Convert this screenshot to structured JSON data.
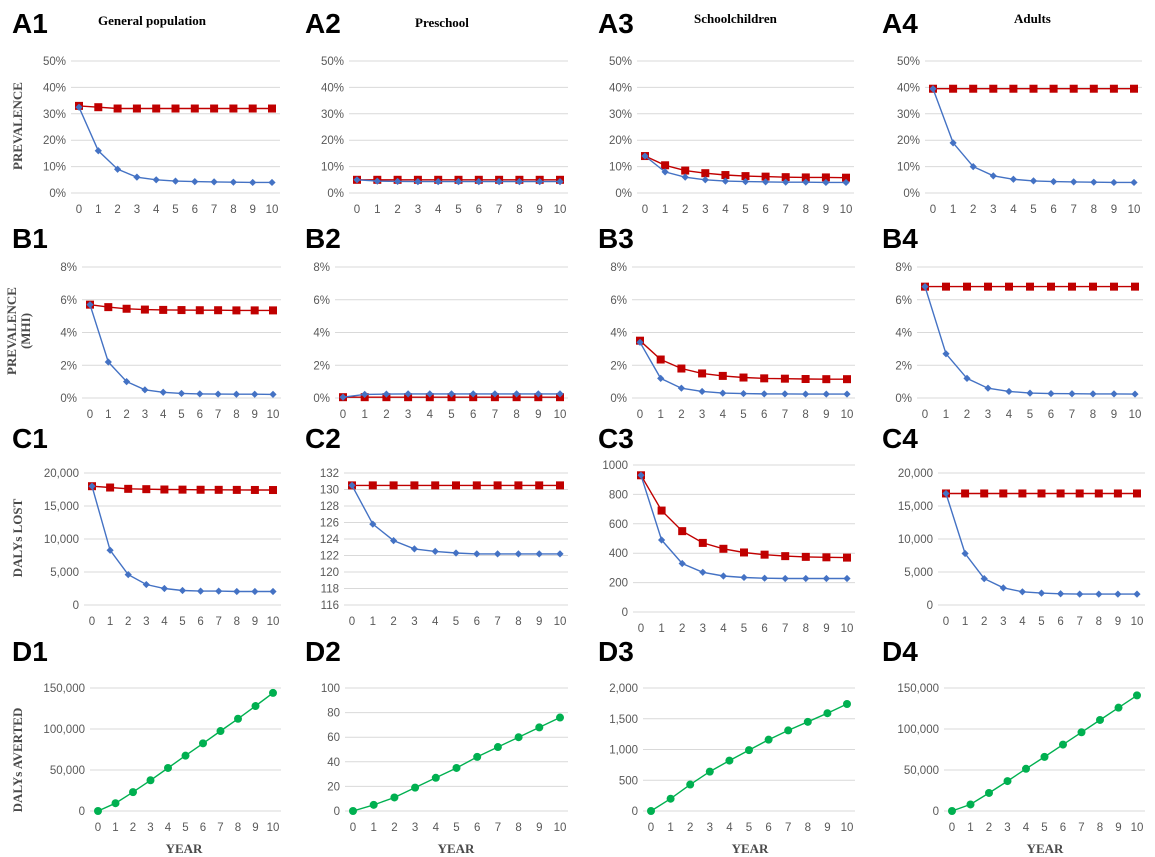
{
  "panel_ids": {
    "A1": "A1",
    "A2": "A2",
    "A3": "A3",
    "A4": "A4",
    "B1": "B1",
    "B2": "B2",
    "B3": "B3",
    "B4": "B4",
    "C1": "C1",
    "C2": "C2",
    "C3": "C3",
    "C4": "C4",
    "D1": "D1",
    "D2": "D2",
    "D3": "D3",
    "D4": "D4"
  },
  "column_titles": [
    "General population",
    "Preschool",
    "Schoolchildren",
    "Adults"
  ],
  "row_labels": {
    "A": "PREVALENCE",
    "B": [
      "PREVALENCE",
      "(MHI)"
    ],
    "C": "DALYs LOST",
    "D": "DALYs AVERTED"
  },
  "x_axis_title": "YEAR",
  "colors": {
    "red_series": "#c00000",
    "blue_series": "#4472c4",
    "green_series": "#00b050",
    "gridline": "#d9d9d9",
    "axis_text": "#595959"
  },
  "chart_data": [
    {
      "id": "A1",
      "type": "line",
      "x": [
        0,
        1,
        2,
        3,
        4,
        5,
        6,
        7,
        8,
        9,
        10
      ],
      "xlim": [
        0,
        10
      ],
      "ylim": [
        0,
        50
      ],
      "yticks": [
        0,
        10,
        20,
        30,
        40,
        50
      ],
      "yticklabels": [
        "0%",
        "10%",
        "20%",
        "30%",
        "40%",
        "50%"
      ],
      "grid": true,
      "legend": "none",
      "series": [
        {
          "color": "#c00000",
          "marker": "square",
          "values": [
            33,
            32.5,
            32,
            32,
            32,
            32,
            32,
            32,
            32,
            32,
            32
          ]
        },
        {
          "color": "#4472c4",
          "marker": "diamond",
          "values": [
            32.5,
            16,
            9,
            6,
            5,
            4.5,
            4.3,
            4.2,
            4.1,
            4,
            4
          ]
        }
      ]
    },
    {
      "id": "A2",
      "type": "line",
      "x": [
        0,
        1,
        2,
        3,
        4,
        5,
        6,
        7,
        8,
        9,
        10
      ],
      "xlim": [
        0,
        10
      ],
      "ylim": [
        0,
        50
      ],
      "yticks": [
        0,
        10,
        20,
        30,
        40,
        50
      ],
      "yticklabels": [
        "0%",
        "10%",
        "20%",
        "30%",
        "40%",
        "50%"
      ],
      "grid": true,
      "legend": "none",
      "series": [
        {
          "color": "#c00000",
          "marker": "square",
          "values": [
            5,
            5,
            5,
            5,
            5,
            5,
            5,
            5,
            5,
            5,
            5
          ]
        },
        {
          "color": "#4472c4",
          "marker": "diamond",
          "values": [
            5,
            4.5,
            4.4,
            4.3,
            4.3,
            4.3,
            4.3,
            4.3,
            4.3,
            4.3,
            4.3
          ]
        }
      ]
    },
    {
      "id": "A3",
      "type": "line",
      "x": [
        0,
        1,
        2,
        3,
        4,
        5,
        6,
        7,
        8,
        9,
        10
      ],
      "xlim": [
        0,
        10
      ],
      "ylim": [
        0,
        50
      ],
      "yticks": [
        0,
        10,
        20,
        30,
        40,
        50
      ],
      "yticklabels": [
        "0%",
        "10%",
        "20%",
        "30%",
        "40%",
        "50%"
      ],
      "grid": true,
      "legend": "none",
      "series": [
        {
          "color": "#c00000",
          "marker": "square",
          "values": [
            14,
            10.5,
            8.5,
            7.5,
            6.8,
            6.4,
            6.2,
            6,
            5.9,
            5.9,
            5.8
          ]
        },
        {
          "color": "#4472c4",
          "marker": "diamond",
          "values": [
            14,
            8,
            6,
            5,
            4.5,
            4.3,
            4.2,
            4.1,
            4.1,
            4,
            4
          ]
        }
      ]
    },
    {
      "id": "A4",
      "type": "line",
      "x": [
        0,
        1,
        2,
        3,
        4,
        5,
        6,
        7,
        8,
        9,
        10
      ],
      "xlim": [
        0,
        10
      ],
      "ylim": [
        0,
        50
      ],
      "yticks": [
        0,
        10,
        20,
        30,
        40,
        50
      ],
      "yticklabels": [
        "0%",
        "10%",
        "20%",
        "30%",
        "40%",
        "50%"
      ],
      "grid": true,
      "legend": "none",
      "series": [
        {
          "color": "#c00000",
          "marker": "square",
          "values": [
            39.5,
            39.5,
            39.5,
            39.5,
            39.5,
            39.5,
            39.5,
            39.5,
            39.5,
            39.5,
            39.5
          ]
        },
        {
          "color": "#4472c4",
          "marker": "diamond",
          "values": [
            39.5,
            19,
            10,
            6.5,
            5.2,
            4.6,
            4.3,
            4.2,
            4.1,
            4,
            4
          ]
        }
      ]
    },
    {
      "id": "B1",
      "type": "line",
      "x": [
        0,
        1,
        2,
        3,
        4,
        5,
        6,
        7,
        8,
        9,
        10
      ],
      "xlim": [
        0,
        10
      ],
      "ylim": [
        0,
        8
      ],
      "yticks": [
        0,
        2,
        4,
        6,
        8
      ],
      "yticklabels": [
        "0%",
        "2%",
        "4%",
        "6%",
        "8%"
      ],
      "grid": true,
      "legend": "none",
      "series": [
        {
          "color": "#c00000",
          "marker": "square",
          "values": [
            5.7,
            5.55,
            5.45,
            5.4,
            5.38,
            5.37,
            5.36,
            5.36,
            5.35,
            5.35,
            5.35
          ]
        },
        {
          "color": "#4472c4",
          "marker": "diamond",
          "values": [
            5.7,
            2.2,
            1.0,
            0.5,
            0.35,
            0.28,
            0.25,
            0.24,
            0.23,
            0.23,
            0.22
          ]
        }
      ]
    },
    {
      "id": "B2",
      "type": "line",
      "x": [
        0,
        1,
        2,
        3,
        4,
        5,
        6,
        7,
        8,
        9,
        10
      ],
      "xlim": [
        0,
        10
      ],
      "ylim": [
        0,
        8
      ],
      "yticks": [
        0,
        2,
        4,
        6,
        8
      ],
      "yticklabels": [
        "0%",
        "2%",
        "4%",
        "6%",
        "8%"
      ],
      "grid": true,
      "legend": "none",
      "series": [
        {
          "color": "#c00000",
          "marker": "square",
          "values": [
            0.05,
            0.05,
            0.05,
            0.05,
            0.05,
            0.05,
            0.05,
            0.05,
            0.05,
            0.05,
            0.05
          ]
        },
        {
          "color": "#4472c4",
          "marker": "diamond",
          "values": [
            0.05,
            0.22,
            0.24,
            0.25,
            0.25,
            0.25,
            0.25,
            0.25,
            0.25,
            0.25,
            0.25
          ]
        }
      ]
    },
    {
      "id": "B3",
      "type": "line",
      "x": [
        0,
        1,
        2,
        3,
        4,
        5,
        6,
        7,
        8,
        9,
        10
      ],
      "xlim": [
        0,
        10
      ],
      "ylim": [
        0,
        8
      ],
      "yticks": [
        0,
        2,
        4,
        6,
        8
      ],
      "yticklabels": [
        "0%",
        "2%",
        "4%",
        "6%",
        "8%"
      ],
      "grid": true,
      "legend": "none",
      "series": [
        {
          "color": "#c00000",
          "marker": "square",
          "values": [
            3.5,
            2.35,
            1.8,
            1.5,
            1.35,
            1.25,
            1.2,
            1.18,
            1.16,
            1.15,
            1.15
          ]
        },
        {
          "color": "#4472c4",
          "marker": "diamond",
          "values": [
            3.4,
            1.2,
            0.6,
            0.4,
            0.3,
            0.27,
            0.25,
            0.25,
            0.24,
            0.24,
            0.24
          ]
        }
      ]
    },
    {
      "id": "B4",
      "type": "line",
      "x": [
        0,
        1,
        2,
        3,
        4,
        5,
        6,
        7,
        8,
        9,
        10
      ],
      "xlim": [
        0,
        10
      ],
      "ylim": [
        0,
        8
      ],
      "yticks": [
        0,
        2,
        4,
        6,
        8
      ],
      "yticklabels": [
        "0%",
        "2%",
        "4%",
        "6%",
        "8%"
      ],
      "grid": true,
      "legend": "none",
      "series": [
        {
          "color": "#c00000",
          "marker": "square",
          "values": [
            6.8,
            6.8,
            6.8,
            6.8,
            6.8,
            6.8,
            6.8,
            6.8,
            6.8,
            6.8,
            6.8
          ]
        },
        {
          "color": "#4472c4",
          "marker": "diamond",
          "values": [
            6.8,
            2.7,
            1.2,
            0.6,
            0.4,
            0.3,
            0.27,
            0.26,
            0.25,
            0.25,
            0.24
          ]
        }
      ]
    },
    {
      "id": "C1",
      "type": "line",
      "x": [
        0,
        1,
        2,
        3,
        4,
        5,
        6,
        7,
        8,
        9,
        10
      ],
      "xlim": [
        0,
        10
      ],
      "ylim": [
        0,
        20000
      ],
      "yticks": [
        0,
        5000,
        10000,
        15000,
        20000
      ],
      "yticklabels": [
        "0",
        "5,000",
        "10,000",
        "15,000",
        "20,000"
      ],
      "grid": true,
      "legend": "none",
      "series": [
        {
          "color": "#c00000",
          "marker": "square",
          "values": [
            18000,
            17800,
            17600,
            17550,
            17500,
            17480,
            17460,
            17450,
            17440,
            17430,
            17420
          ]
        },
        {
          "color": "#4472c4",
          "marker": "diamond",
          "values": [
            18000,
            8300,
            4600,
            3100,
            2500,
            2200,
            2100,
            2100,
            2050,
            2050,
            2050
          ]
        }
      ]
    },
    {
      "id": "C2",
      "type": "line",
      "x": [
        0,
        1,
        2,
        3,
        4,
        5,
        6,
        7,
        8,
        9,
        10
      ],
      "xlim": [
        0,
        10
      ],
      "ylim": [
        116,
        132
      ],
      "yticks": [
        116,
        118,
        120,
        122,
        124,
        126,
        128,
        130,
        132
      ],
      "yticklabels": [
        "116",
        "118",
        "120",
        "122",
        "124",
        "126",
        "128",
        "130",
        "132"
      ],
      "grid": true,
      "legend": "none",
      "series": [
        {
          "color": "#c00000",
          "marker": "square",
          "values": [
            130.5,
            130.5,
            130.5,
            130.5,
            130.5,
            130.5,
            130.5,
            130.5,
            130.5,
            130.5,
            130.5
          ]
        },
        {
          "color": "#4472c4",
          "marker": "diamond",
          "values": [
            130.5,
            125.8,
            123.8,
            122.8,
            122.5,
            122.3,
            122.2,
            122.2,
            122.2,
            122.2,
            122.2
          ]
        }
      ]
    },
    {
      "id": "C3",
      "type": "line",
      "x": [
        0,
        1,
        2,
        3,
        4,
        5,
        6,
        7,
        8,
        9,
        10
      ],
      "xlim": [
        0,
        10
      ],
      "ylim": [
        0,
        1000
      ],
      "yticks": [
        0,
        200,
        400,
        600,
        800,
        1000
      ],
      "yticklabels": [
        "0",
        "200",
        "400",
        "600",
        "800",
        "1000"
      ],
      "grid": true,
      "legend": "none",
      "series": [
        {
          "color": "#c00000",
          "marker": "square",
          "values": [
            930,
            690,
            550,
            470,
            430,
            405,
            390,
            380,
            375,
            372,
            370
          ]
        },
        {
          "color": "#4472c4",
          "marker": "diamond",
          "values": [
            930,
            490,
            330,
            270,
            245,
            235,
            230,
            228,
            228,
            228,
            228
          ]
        }
      ]
    },
    {
      "id": "C4",
      "type": "line",
      "x": [
        0,
        1,
        2,
        3,
        4,
        5,
        6,
        7,
        8,
        9,
        10
      ],
      "xlim": [
        0,
        10
      ],
      "ylim": [
        0,
        20000
      ],
      "yticks": [
        0,
        5000,
        10000,
        15000,
        20000
      ],
      "yticklabels": [
        "0",
        "5,000",
        "10,000",
        "15,000",
        "20,000"
      ],
      "grid": true,
      "legend": "none",
      "series": [
        {
          "color": "#c00000",
          "marker": "square",
          "values": [
            16900,
            16900,
            16900,
            16900,
            16900,
            16900,
            16900,
            16900,
            16900,
            16900,
            16900
          ]
        },
        {
          "color": "#4472c4",
          "marker": "diamond",
          "values": [
            16900,
            7800,
            4000,
            2600,
            2000,
            1800,
            1700,
            1650,
            1650,
            1650,
            1650
          ]
        }
      ]
    },
    {
      "id": "D1",
      "type": "line",
      "x": [
        0,
        1,
        2,
        3,
        4,
        5,
        6,
        7,
        8,
        9,
        10
      ],
      "xlim": [
        0,
        10
      ],
      "ylim": [
        0,
        150000
      ],
      "yticks": [
        0,
        50000,
        100000,
        150000
      ],
      "yticklabels": [
        "0",
        "50,000",
        "100,000",
        "150,000"
      ],
      "grid": true,
      "legend": "none",
      "series": [
        {
          "color": "#00b050",
          "marker": "circle",
          "values": [
            0,
            9500,
            23000,
            37500,
            52500,
            67500,
            82500,
            97500,
            112500,
            128000,
            144000
          ]
        }
      ]
    },
    {
      "id": "D2",
      "type": "line",
      "x": [
        0,
        1,
        2,
        3,
        4,
        5,
        6,
        7,
        8,
        9,
        10
      ],
      "xlim": [
        0,
        10
      ],
      "ylim": [
        0,
        100
      ],
      "yticks": [
        0,
        20,
        40,
        60,
        80,
        100
      ],
      "yticklabels": [
        "0",
        "20",
        "40",
        "60",
        "80",
        "100"
      ],
      "grid": true,
      "legend": "none",
      "series": [
        {
          "color": "#00b050",
          "marker": "circle",
          "values": [
            0,
            5,
            11,
            19,
            27,
            35,
            44,
            52,
            60,
            68,
            76
          ]
        }
      ]
    },
    {
      "id": "D3",
      "type": "line",
      "x": [
        0,
        1,
        2,
        3,
        4,
        5,
        6,
        7,
        8,
        9,
        10
      ],
      "xlim": [
        0,
        10
      ],
      "ylim": [
        0,
        2000
      ],
      "yticks": [
        0,
        500,
        1000,
        1500,
        2000
      ],
      "yticklabels": [
        "0",
        "500",
        "1,000",
        "1,500",
        "2,000"
      ],
      "grid": true,
      "legend": "none",
      "series": [
        {
          "color": "#00b050",
          "marker": "circle",
          "values": [
            0,
            200,
            430,
            640,
            820,
            990,
            1160,
            1310,
            1450,
            1590,
            1740
          ]
        }
      ]
    },
    {
      "id": "D4",
      "type": "line",
      "x": [
        0,
        1,
        2,
        3,
        4,
        5,
        6,
        7,
        8,
        9,
        10
      ],
      "xlim": [
        0,
        10
      ],
      "ylim": [
        0,
        150000
      ],
      "yticks": [
        0,
        50000,
        100000,
        150000
      ],
      "yticklabels": [
        "0",
        "50,000",
        "100,000",
        "150,000"
      ],
      "grid": true,
      "legend": "none",
      "series": [
        {
          "color": "#00b050",
          "marker": "circle",
          "values": [
            0,
            8000,
            22000,
            36500,
            51500,
            66000,
            81000,
            96000,
            111000,
            126000,
            141000
          ]
        }
      ]
    }
  ]
}
